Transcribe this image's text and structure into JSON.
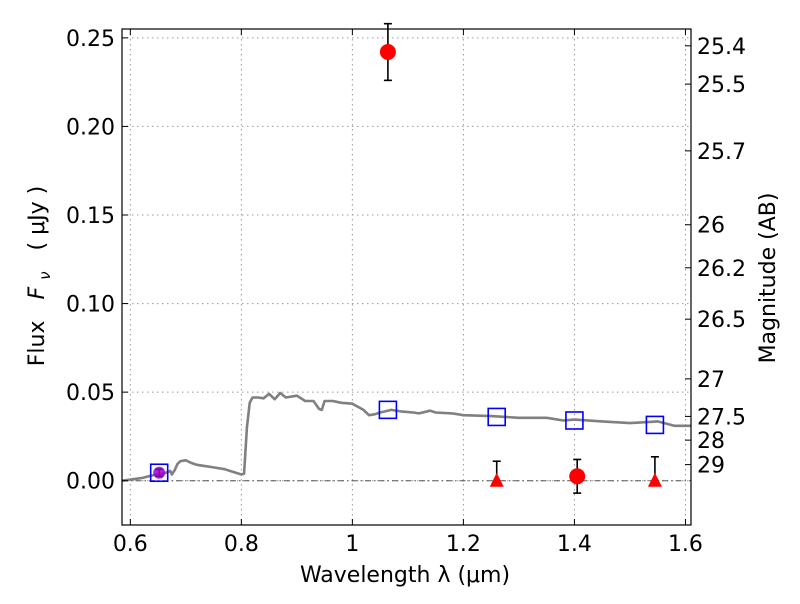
{
  "chart_data": {
    "type": "scatter",
    "xlabel": "Wavelength  λ (μm)",
    "ylabel": "Flux  F_ν  ( μJy )",
    "ylabel_parts": {
      "prefix": "Flux",
      "symbol": "F",
      "subscript": "ν",
      "units": "( μJy )"
    },
    "y2label": "Magnitude (AB)",
    "xlim": [
      0.585,
      1.61
    ],
    "ylim": [
      -0.025,
      0.255
    ],
    "grid": true,
    "x_ticks": [
      {
        "value": 0.6,
        "label": "0.6"
      },
      {
        "value": 0.8,
        "label": "0.8"
      },
      {
        "value": 1.0,
        "label": "1"
      },
      {
        "value": 1.2,
        "label": "1.2"
      },
      {
        "value": 1.4,
        "label": "1.4"
      },
      {
        "value": 1.6,
        "label": "1.6"
      }
    ],
    "y_ticks": [
      {
        "value": 0.0,
        "label": "0.00"
      },
      {
        "value": 0.05,
        "label": "0.05"
      },
      {
        "value": 0.1,
        "label": "0.10"
      },
      {
        "value": 0.15,
        "label": "0.15"
      },
      {
        "value": 0.2,
        "label": "0.20"
      },
      {
        "value": 0.25,
        "label": "0.25"
      }
    ],
    "y2_ticks": [
      {
        "flux": 0.2455,
        "label": "25.4"
      },
      {
        "flux": 0.2239,
        "label": "25.5"
      },
      {
        "flux": 0.1862,
        "label": "25.7"
      },
      {
        "flux": 0.1445,
        "label": "26"
      },
      {
        "flux": 0.1202,
        "label": "26.2"
      },
      {
        "flux": 0.0912,
        "label": "26.5"
      },
      {
        "flux": 0.0575,
        "label": "27"
      },
      {
        "flux": 0.0363,
        "label": "27.5"
      },
      {
        "flux": 0.0229,
        "label": "28"
      },
      {
        "flux": 0.0091,
        "label": "29"
      }
    ],
    "zero_line": 0.0,
    "colors": {
      "model": "#808080",
      "detection": "#ff0000",
      "upper_limit": "#ff0000",
      "model_flux": "#0000ff",
      "first_point": "#9900cc",
      "errorbar": "#000000",
      "grid": "#999999",
      "zero_line": "#555555"
    },
    "series": [
      {
        "name": "model SED",
        "kind": "line",
        "points": [
          [
            0.585,
            0.0
          ],
          [
            0.62,
            0.0015
          ],
          [
            0.64,
            0.003
          ],
          [
            0.66,
            0.004
          ],
          [
            0.672,
            0.0055
          ],
          [
            0.675,
            0.0035
          ],
          [
            0.68,
            0.006
          ],
          [
            0.685,
            0.0095
          ],
          [
            0.69,
            0.011
          ],
          [
            0.7,
            0.0115
          ],
          [
            0.71,
            0.01
          ],
          [
            0.72,
            0.009
          ],
          [
            0.73,
            0.0085
          ],
          [
            0.75,
            0.0075
          ],
          [
            0.77,
            0.0065
          ],
          [
            0.785,
            0.005
          ],
          [
            0.8,
            0.0035
          ],
          [
            0.805,
            0.004
          ],
          [
            0.81,
            0.03
          ],
          [
            0.815,
            0.044
          ],
          [
            0.82,
            0.047
          ],
          [
            0.83,
            0.047
          ],
          [
            0.84,
            0.0465
          ],
          [
            0.85,
            0.049
          ],
          [
            0.86,
            0.046
          ],
          [
            0.87,
            0.0495
          ],
          [
            0.88,
            0.047
          ],
          [
            0.9,
            0.048
          ],
          [
            0.915,
            0.045
          ],
          [
            0.93,
            0.045
          ],
          [
            0.94,
            0.0405
          ],
          [
            0.945,
            0.04
          ],
          [
            0.95,
            0.045
          ],
          [
            0.965,
            0.045
          ],
          [
            0.98,
            0.044
          ],
          [
            1.0,
            0.0435
          ],
          [
            1.02,
            0.04
          ],
          [
            1.03,
            0.037
          ],
          [
            1.04,
            0.0375
          ],
          [
            1.05,
            0.0385
          ],
          [
            1.07,
            0.04
          ],
          [
            1.09,
            0.039
          ],
          [
            1.11,
            0.0385
          ],
          [
            1.12,
            0.038
          ],
          [
            1.14,
            0.0395
          ],
          [
            1.15,
            0.0385
          ],
          [
            1.18,
            0.038
          ],
          [
            1.2,
            0.037
          ],
          [
            1.25,
            0.0365
          ],
          [
            1.3,
            0.0355
          ],
          [
            1.35,
            0.0355
          ],
          [
            1.38,
            0.034
          ],
          [
            1.4,
            0.0345
          ],
          [
            1.45,
            0.0335
          ],
          [
            1.5,
            0.0325
          ],
          [
            1.55,
            0.0335
          ],
          [
            1.58,
            0.031
          ],
          [
            1.61,
            0.031
          ]
        ]
      },
      {
        "name": "model flux in bands",
        "kind": "open-square",
        "points": [
          [
            0.652,
            0.0045
          ],
          [
            1.064,
            0.04
          ],
          [
            1.26,
            0.036
          ],
          [
            1.4,
            0.034
          ],
          [
            1.545,
            0.0315
          ]
        ]
      },
      {
        "name": "observed detections",
        "kind": "circle",
        "points": [
          {
            "x": 0.652,
            "y": 0.0045,
            "err": 0.002
          },
          {
            "x": 1.064,
            "y": 0.242,
            "err": 0.016
          },
          {
            "x": 1.405,
            "y": 0.0025,
            "err": 0.0095
          }
        ]
      },
      {
        "name": "upper limits",
        "kind": "triangle",
        "points": [
          {
            "x": 1.26,
            "y": 0.0,
            "top": 0.011
          },
          {
            "x": 1.545,
            "y": 0.0,
            "top": 0.0135
          }
        ]
      }
    ]
  }
}
